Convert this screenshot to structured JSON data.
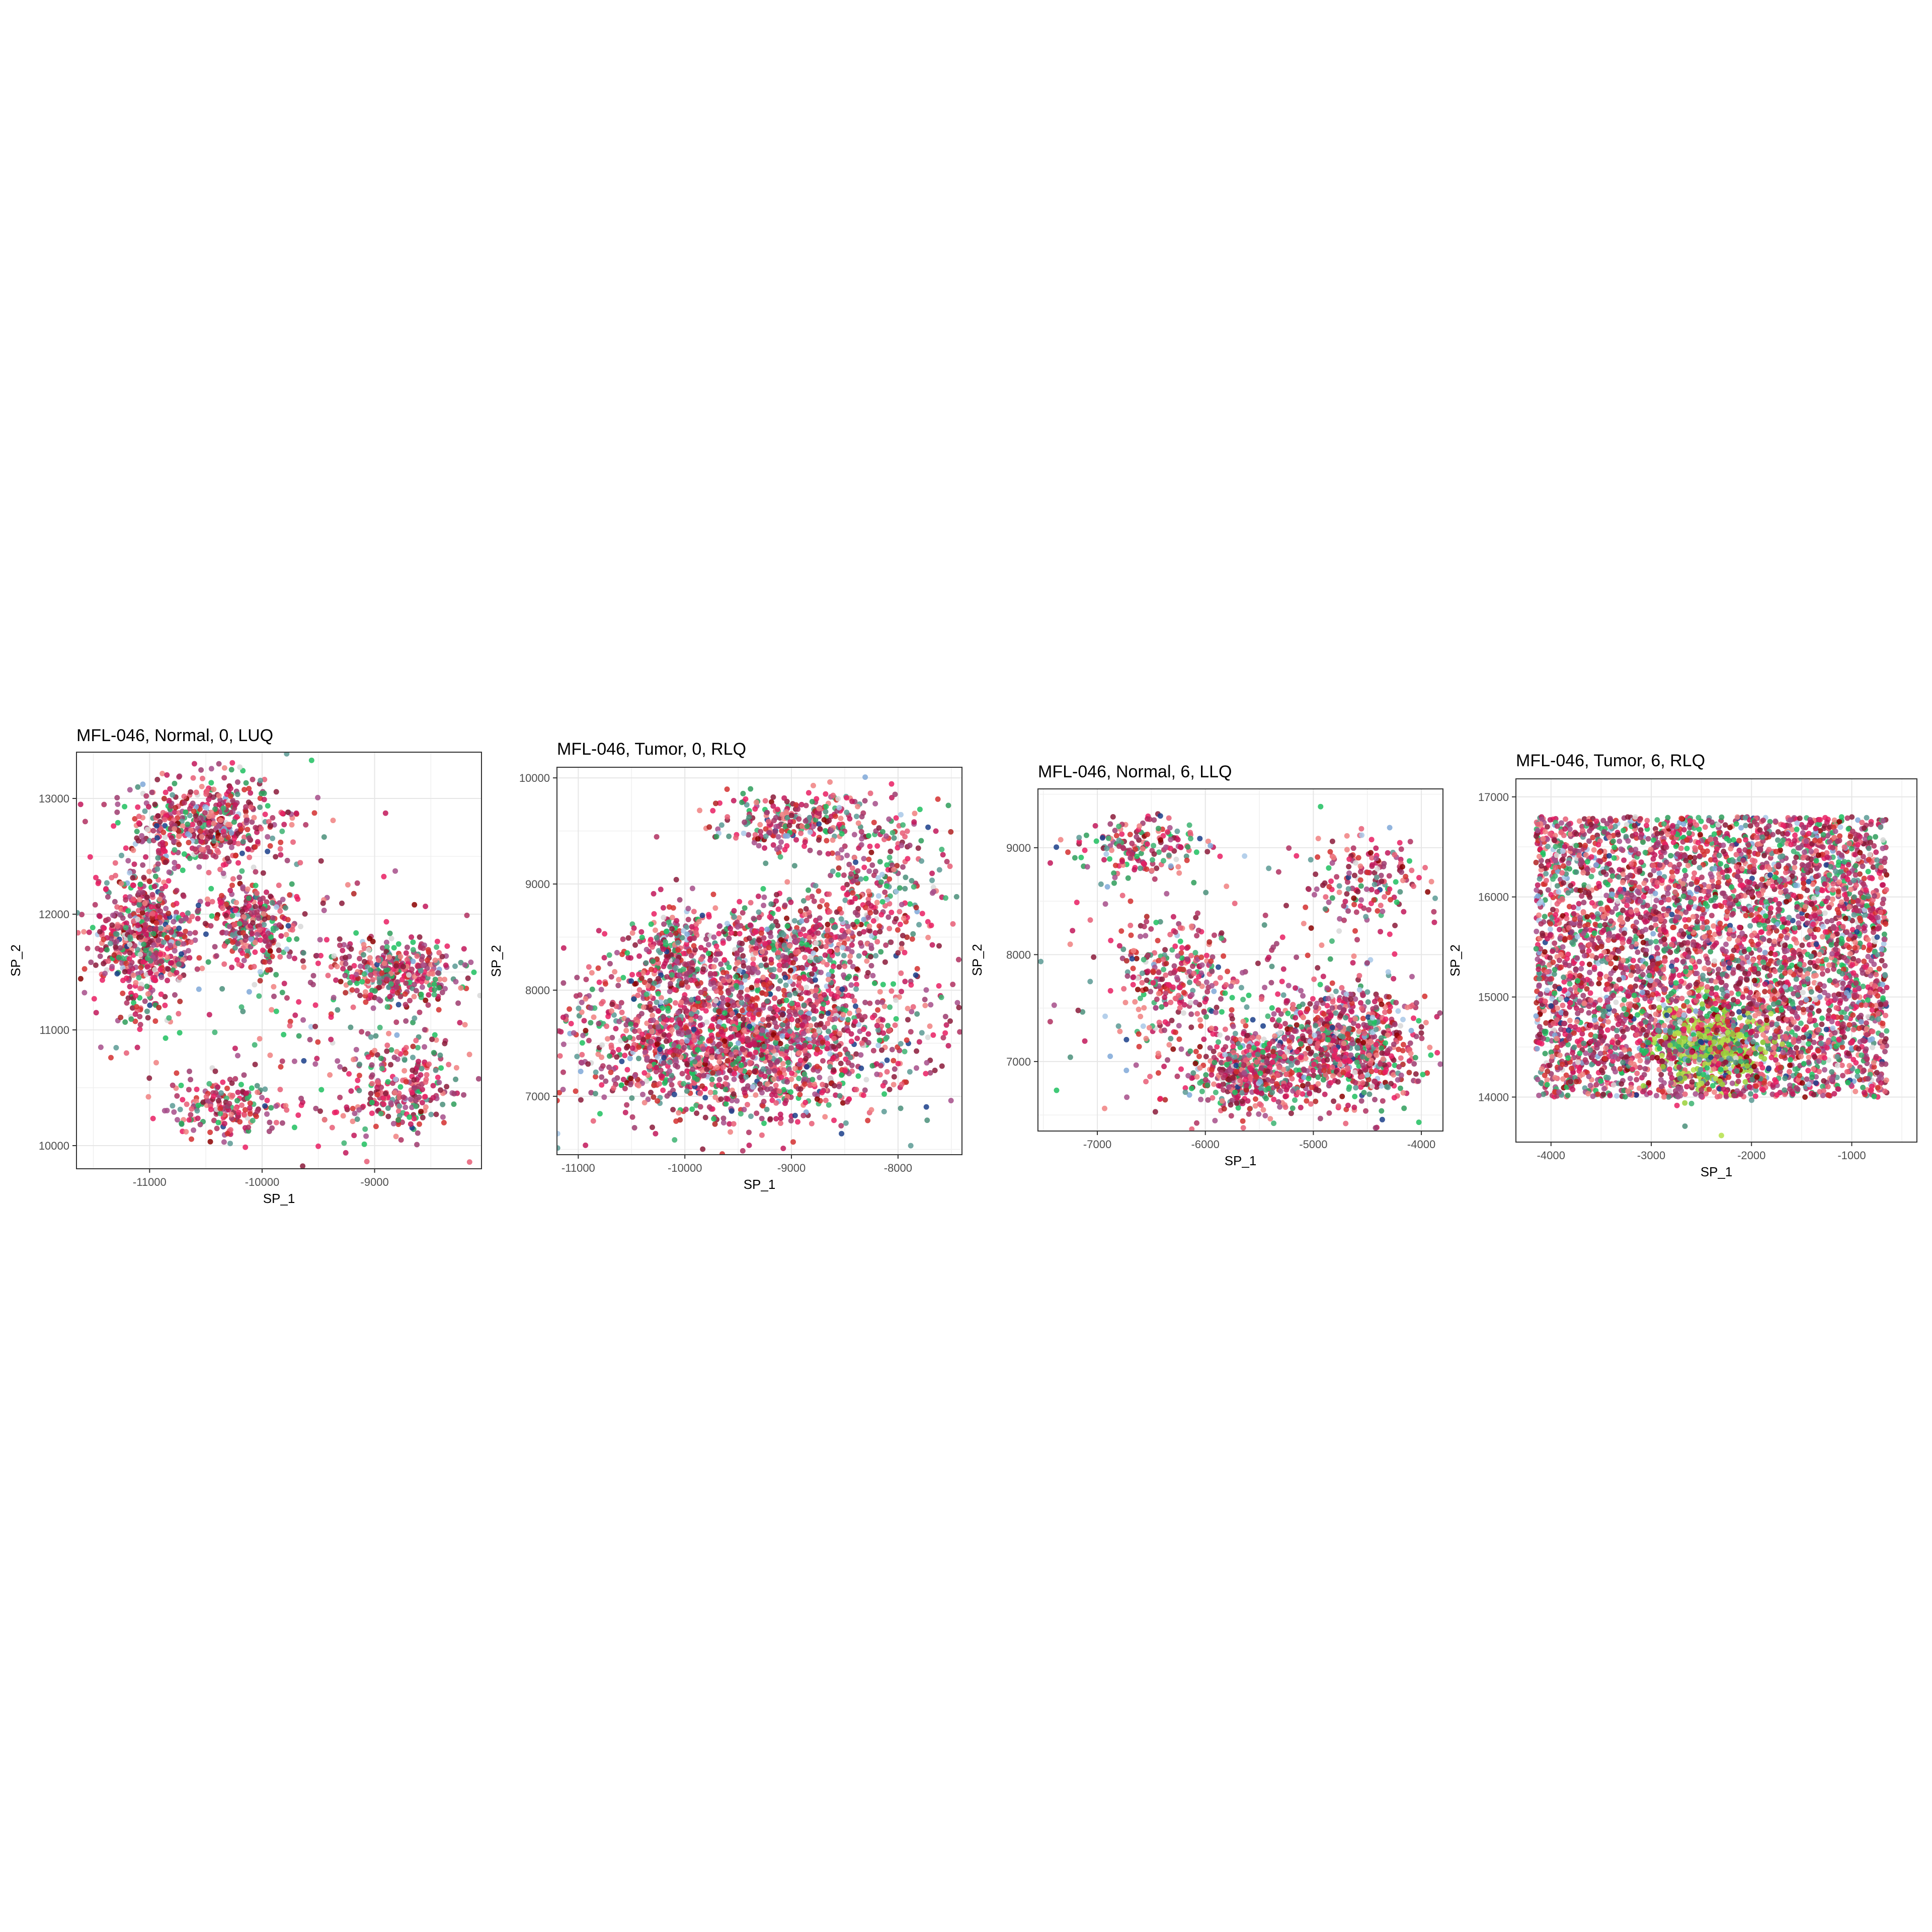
{
  "figure": {
    "background": "#ffffff"
  },
  "palette": [
    "#c2185b",
    "#e85d75",
    "#8b1a3a",
    "#a64d8a",
    "#f08080",
    "#d32f2f",
    "#9e3b6f",
    "#e91e63",
    "#b03060",
    "#2e9e5b",
    "#3cb371",
    "#1fbf5f",
    "#4a8f7a",
    "#5b9a94",
    "#9ad13a",
    "#b4e04a",
    "#a8c8e8",
    "#7fa8d8",
    "#1a3e8a",
    "#d8d8d8",
    "#b22222",
    "#8b0000"
  ],
  "chart_data": [
    {
      "type": "scatter",
      "title": "MFL-046, Normal, 0, LUQ",
      "xlabel": "SP_1",
      "ylabel": "SP_2",
      "xlim": [
        -11650,
        -8050
      ],
      "ylim": [
        9800,
        13400
      ],
      "x_ticks": [
        -11000,
        -10000,
        -9000
      ],
      "x_tick_labels": [
        "-11000",
        "-10000",
        "-9000"
      ],
      "y_ticks": [
        10000,
        11000,
        12000,
        13000
      ],
      "y_tick_labels": [
        "10000",
        "11000",
        "12000",
        "13000"
      ],
      "grid": true,
      "legend": "none",
      "point_count": 2400,
      "regions": [
        {
          "cx": -11050,
          "cy": 11800,
          "rx": 400,
          "ry": 600,
          "weight": 0.28
        },
        {
          "cx": -10500,
          "cy": 12800,
          "rx": 600,
          "ry": 350,
          "weight": 0.2
        },
        {
          "cx": -10100,
          "cy": 11900,
          "rx": 350,
          "ry": 350,
          "weight": 0.12
        },
        {
          "cx": -10300,
          "cy": 10300,
          "rx": 500,
          "ry": 250,
          "weight": 0.08
        },
        {
          "cx": -8800,
          "cy": 11500,
          "rx": 500,
          "ry": 250,
          "weight": 0.14
        },
        {
          "cx": -8750,
          "cy": 10500,
          "rx": 500,
          "ry": 400,
          "weight": 0.1
        },
        {
          "cx": -9400,
          "cy": 11200,
          "rx": 900,
          "ry": 1400,
          "weight": 0.08
        }
      ]
    },
    {
      "type": "scatter",
      "title": "MFL-046, Tumor, 0, RLQ",
      "xlabel": "SP_1",
      "ylabel": "SP_2",
      "xlim": [
        -11200,
        -7400
      ],
      "ylim": [
        6450,
        10100
      ],
      "x_ticks": [
        -11000,
        -10000,
        -9000,
        -8000
      ],
      "x_tick_labels": [
        "-11000",
        "-10000",
        "-9000",
        "-8000"
      ],
      "y_ticks": [
        7000,
        8000,
        9000,
        10000
      ],
      "y_tick_labels": [
        "7000",
        "8000",
        "9000",
        "10000"
      ],
      "grid": true,
      "legend": "none",
      "point_count": 3200,
      "regions": [
        {
          "cx": -9500,
          "cy": 7550,
          "rx": 1450,
          "ry": 700,
          "weight": 0.62
        },
        {
          "cx": -9000,
          "cy": 8400,
          "rx": 800,
          "ry": 400,
          "weight": 0.14
        },
        {
          "cx": -8200,
          "cy": 9000,
          "rx": 700,
          "ry": 700,
          "weight": 0.1
        },
        {
          "cx": -10100,
          "cy": 8400,
          "rx": 400,
          "ry": 400,
          "weight": 0.06
        },
        {
          "cx": -8900,
          "cy": 9600,
          "rx": 700,
          "ry": 250,
          "weight": 0.08
        }
      ]
    },
    {
      "type": "scatter",
      "title": "MFL-046, Normal, 6, LLQ",
      "xlabel": "SP_1",
      "ylabel": "SP_2",
      "xlim": [
        -7550,
        -3800
      ],
      "ylim": [
        6350,
        9550
      ],
      "x_ticks": [
        -7000,
        -6000,
        -5000,
        -4000
      ],
      "x_tick_labels": [
        "-7000",
        "-6000",
        "-5000",
        "-4000"
      ],
      "y_ticks": [
        7000,
        8000,
        9000
      ],
      "y_tick_labels": [
        "7000",
        "8000",
        "9000"
      ],
      "grid": true,
      "legend": "none",
      "point_count": 2000,
      "regions": [
        {
          "cx": -4700,
          "cy": 7150,
          "rx": 650,
          "ry": 500,
          "weight": 0.4
        },
        {
          "cx": -5600,
          "cy": 6900,
          "rx": 450,
          "ry": 350,
          "weight": 0.22
        },
        {
          "cx": -6300,
          "cy": 7800,
          "rx": 450,
          "ry": 500,
          "weight": 0.12
        },
        {
          "cx": -6600,
          "cy": 9000,
          "rx": 550,
          "ry": 250,
          "weight": 0.08
        },
        {
          "cx": -4500,
          "cy": 8700,
          "rx": 500,
          "ry": 400,
          "weight": 0.08
        },
        {
          "cx": -5800,
          "cy": 7500,
          "rx": 1700,
          "ry": 1100,
          "weight": 0.1
        }
      ]
    },
    {
      "type": "scatter",
      "title": "MFL-046, Tumor, 6, RLQ",
      "xlabel": "SP_1",
      "ylabel": "SP_2",
      "xlim": [
        -4350,
        -350
      ],
      "ylim": [
        13550,
        17180
      ],
      "x_ticks": [
        -4000,
        -3000,
        -2000,
        -1000
      ],
      "x_tick_labels": [
        "-4000",
        "-3000",
        "-2000",
        "-1000"
      ],
      "y_ticks": [
        14000,
        15000,
        16000,
        17000
      ],
      "y_tick_labels": [
        "14000",
        "15000",
        "16000",
        "17000"
      ],
      "grid": true,
      "legend": "none",
      "point_count": 5200,
      "regions": [
        {
          "cx": -2400,
          "cy": 15400,
          "rx": 1750,
          "ry": 1400,
          "weight": 0.9
        },
        {
          "cx": -2400,
          "cy": 14500,
          "rx": 500,
          "ry": 400,
          "weight": 0.1
        }
      ]
    }
  ]
}
